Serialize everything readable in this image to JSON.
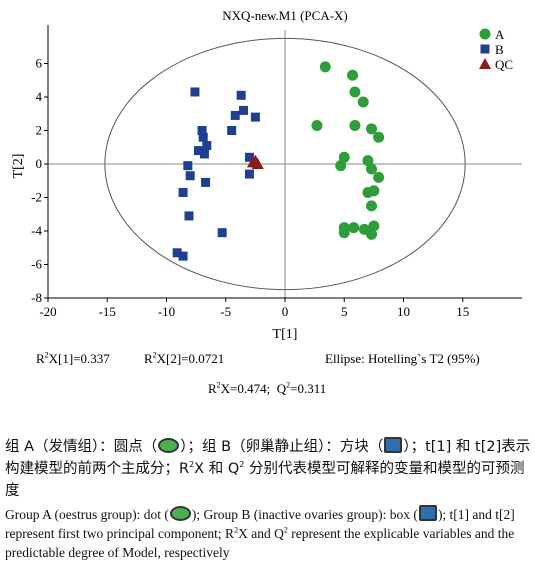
{
  "chart_data": {
    "type": "scatter",
    "title": "NXQ-new.M1 (PCA-X)",
    "xlabel": "T[1]",
    "ylabel": "T[2]",
    "xlim": [
      -20,
      20
    ],
    "ylim": [
      -8,
      8
    ],
    "xticks": [
      "-20",
      "-15",
      "-10",
      "-5",
      "0",
      "5",
      "10",
      "15"
    ],
    "yticks": [
      "-8",
      "-6",
      "-4",
      "-2",
      "0",
      "2",
      "4",
      "6"
    ],
    "grid": false,
    "legend_position": "top-right",
    "ellipse": {
      "label": "Ellipse: Hotelling`s T2 (95%)",
      "center": [
        0,
        0
      ],
      "rx": 15.2,
      "ry": 7.5
    },
    "series": [
      {
        "name": "A",
        "marker": "circle",
        "color": "#2e9e3a",
        "points": [
          [
            3.4,
            5.8
          ],
          [
            5.7,
            5.3
          ],
          [
            5.9,
            4.3
          ],
          [
            6.6,
            3.7
          ],
          [
            2.7,
            2.3
          ],
          [
            5.9,
            2.3
          ],
          [
            7.3,
            2.1
          ],
          [
            7.9,
            1.6
          ],
          [
            5.0,
            0.4
          ],
          [
            4.7,
            -0.1
          ],
          [
            7.0,
            0.2
          ],
          [
            7.3,
            -0.3
          ],
          [
            7.9,
            -0.8
          ],
          [
            7.5,
            -1.6
          ],
          [
            7.0,
            -1.7
          ],
          [
            7.3,
            -2.5
          ],
          [
            5.0,
            -3.8
          ],
          [
            5.0,
            -4.1
          ],
          [
            5.8,
            -3.8
          ],
          [
            6.7,
            -3.9
          ],
          [
            7.5,
            -3.7
          ],
          [
            7.3,
            -4.2
          ]
        ]
      },
      {
        "name": "B",
        "marker": "square",
        "color": "#1f3f8f",
        "points": [
          [
            -7.6,
            4.3
          ],
          [
            -3.7,
            4.1
          ],
          [
            -4.2,
            2.9
          ],
          [
            -3.5,
            3.2
          ],
          [
            -2.5,
            2.8
          ],
          [
            -7.0,
            2.0
          ],
          [
            -6.9,
            1.6
          ],
          [
            -6.6,
            1.1
          ],
          [
            -4.5,
            2.0
          ],
          [
            -7.3,
            0.8
          ],
          [
            -6.8,
            0.6
          ],
          [
            -8.2,
            -0.1
          ],
          [
            -8.0,
            -0.7
          ],
          [
            -3.0,
            0.4
          ],
          [
            -6.7,
            -1.1
          ],
          [
            -8.6,
            -1.7
          ],
          [
            -3.0,
            -0.6
          ],
          [
            -8.1,
            -3.1
          ],
          [
            -5.3,
            -4.1
          ],
          [
            -9.1,
            -5.3
          ],
          [
            -8.6,
            -5.5
          ]
        ]
      },
      {
        "name": "QC",
        "marker": "triangle",
        "color": "#8b1a1a",
        "points": [
          [
            -2.7,
            0.1
          ],
          [
            -2.5,
            0.2
          ],
          [
            -2.3,
            0.0
          ]
        ]
      }
    ]
  },
  "stats": {
    "r2x1_label": "X[1]=0.337",
    "r2x2_label": "X[2]=0.0721",
    "r2x_label": "X=0.474;",
    "q2_label": "=0.311"
  },
  "caption": {
    "cn_1": "组 A（发情组）：圆点（",
    "cn_2": "）；组 B（卵巢静止组）：方块（",
    "cn_3": "）；t[1] 和 t[2]表示构建模型的前两个主成分；R",
    "cn_4": "X 和 Q",
    "cn_5": " 分别代表模型可解释的变量和模型的可预测度",
    "en_1": "Group A (oestrus group): dot (",
    "en_2": "); Group B (inactive ovaries group): box (",
    "en_3": "); t[1] and t[2] represent first two principal component; R",
    "en_4": "X and Q",
    "en_5": " represent the explicable variables and the predictable degree of Model, respectively"
  }
}
